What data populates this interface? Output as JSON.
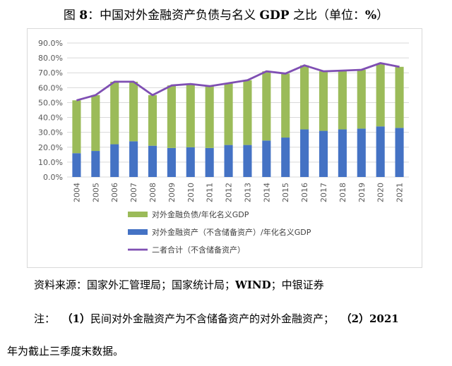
{
  "title": {
    "prefix": "图 ",
    "number": "8",
    "text": "：中国对外金融资产负债与名义 ",
    "gdp": "GDP",
    "suffix": " 之比（单位：",
    "unit": "%",
    "close": "）"
  },
  "chart_data": {
    "type": "bar",
    "stacked": true,
    "categories": [
      "2004",
      "2005",
      "2006",
      "2007",
      "2008",
      "2009",
      "2010",
      "2011",
      "2012",
      "2013",
      "2014",
      "2015",
      "2016",
      "2017",
      "2018",
      "2019",
      "2020",
      "2021"
    ],
    "y_ticks": [
      "0.0%",
      "10.0%",
      "20.0%",
      "30.0%",
      "40.0%",
      "50.0%",
      "60.0%",
      "70.0%",
      "80.0%",
      "90.0%"
    ],
    "ylim": [
      0,
      90
    ],
    "grid": true,
    "legend_position": "bottom",
    "series": [
      {
        "name": "对外金融资产（不含储备资产）/年化名义GDP",
        "type": "bar",
        "color": "#4472c4",
        "values": [
          16.0,
          17.5,
          22.0,
          24.0,
          21.0,
          19.5,
          20.0,
          19.5,
          21.5,
          21.5,
          24.5,
          26.5,
          32.0,
          31.0,
          32.0,
          32.5,
          34.0,
          33.0
        ]
      },
      {
        "name": "对外金融负债/年化名义GDP",
        "type": "bar",
        "color": "#9bbb59",
        "values": [
          35.5,
          37.5,
          42.0,
          40.0,
          34.0,
          42.0,
          42.5,
          41.5,
          41.5,
          43.5,
          46.5,
          43.0,
          43.0,
          40.0,
          39.5,
          39.5,
          42.0,
          41.0
        ]
      },
      {
        "name": "二者合计（不含储备资产）",
        "type": "line",
        "color": "#7f4fb3",
        "values": [
          51.5,
          55.0,
          64.0,
          64.0,
          55.0,
          61.5,
          62.5,
          61.0,
          63.0,
          65.0,
          71.0,
          69.5,
          75.0,
          71.0,
          71.5,
          72.0,
          76.5,
          74.0
        ]
      }
    ]
  },
  "source": {
    "text1": "资料来源：国家外汇管理局；国家统计局；",
    "wind": "WIND",
    "text2": "；中银证券"
  },
  "note": {
    "label": "注：",
    "p1_num": "（1）",
    "p1_text": "民间对外金融资产为不含储备资产的对外金融资产；",
    "p2_num": "（2）",
    "p2_year": "2021",
    "p2_text": "年为截止三季度末数据。"
  }
}
